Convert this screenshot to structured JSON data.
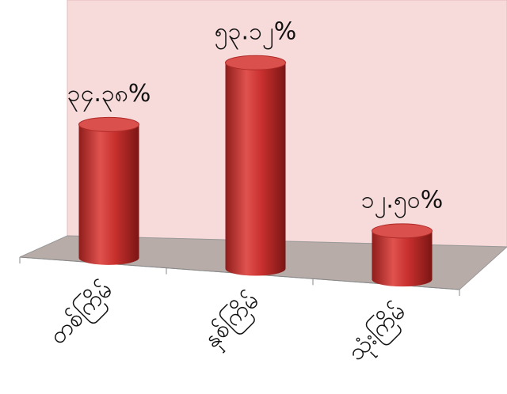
{
  "chart_data": {
    "type": "bar",
    "color": "#c8302e",
    "categories": [
      "တစ်ကြိမ်",
      "နှစ်ကြိမ်",
      "သုံးကြိမ်"
    ],
    "values": [
      34.38,
      53.12,
      12.5
    ],
    "value_labels": [
      "၃၄.၃၈%",
      "၅၃.၁၂%",
      "၁၂.၅၀%"
    ]
  }
}
